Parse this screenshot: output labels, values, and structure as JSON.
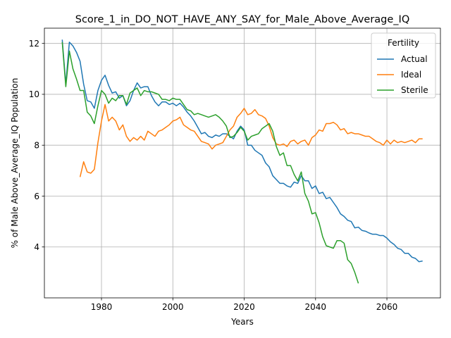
{
  "chart_data": {
    "type": "line",
    "title": "Score_1_in_DO_NOT_HAVE_ANY_SAY_for_Male_Above_Average_IQ",
    "xlabel": "Years",
    "ylabel": "% of Male Above_Average_IQ Population",
    "xlim": [
      1964,
      2075
    ],
    "ylim": [
      2.0,
      12.6
    ],
    "xticks": [
      1980,
      2000,
      2020,
      2040,
      2060
    ],
    "yticks": [
      4,
      6,
      8,
      10,
      12
    ],
    "grid": true,
    "legend": {
      "title": "Fertility",
      "placement": "top-right"
    },
    "series": [
      {
        "name": "Actual",
        "color": "#1f77b4",
        "points": [
          [
            1969,
            12.15
          ],
          [
            1970,
            10.4
          ],
          [
            1971,
            12.05
          ],
          [
            1972,
            11.9
          ],
          [
            1973,
            11.65
          ],
          [
            1974,
            11.3
          ],
          [
            1975,
            10.4
          ],
          [
            1976,
            9.75
          ],
          [
            1977,
            9.7
          ],
          [
            1978,
            9.45
          ],
          [
            1979,
            10.15
          ],
          [
            1980,
            10.55
          ],
          [
            1981,
            10.75
          ],
          [
            1982,
            10.35
          ],
          [
            1983,
            10.05
          ],
          [
            1984,
            10.1
          ],
          [
            1985,
            9.85
          ],
          [
            1986,
            9.95
          ],
          [
            1987,
            9.55
          ],
          [
            1988,
            9.75
          ],
          [
            1989,
            10.15
          ],
          [
            1990,
            10.45
          ],
          [
            1991,
            10.25
          ],
          [
            1992,
            10.3
          ],
          [
            1993,
            10.3
          ],
          [
            1994,
            9.95
          ],
          [
            1995,
            9.7
          ],
          [
            1996,
            9.55
          ],
          [
            1997,
            9.7
          ],
          [
            1998,
            9.7
          ],
          [
            1999,
            9.6
          ],
          [
            2000,
            9.65
          ],
          [
            2001,
            9.55
          ],
          [
            2002,
            9.65
          ],
          [
            2003,
            9.5
          ],
          [
            2004,
            9.3
          ],
          [
            2005,
            9.15
          ],
          [
            2006,
            8.95
          ],
          [
            2007,
            8.7
          ],
          [
            2008,
            8.45
          ],
          [
            2009,
            8.5
          ],
          [
            2010,
            8.35
          ],
          [
            2011,
            8.3
          ],
          [
            2012,
            8.4
          ],
          [
            2013,
            8.35
          ],
          [
            2014,
            8.45
          ],
          [
            2015,
            8.45
          ],
          [
            2016,
            8.35
          ],
          [
            2017,
            8.25
          ],
          [
            2018,
            8.55
          ],
          [
            2019,
            8.75
          ],
          [
            2020,
            8.6
          ],
          [
            2021,
            8.0
          ],
          [
            2022,
            8.0
          ],
          [
            2023,
            7.8
          ],
          [
            2024,
            7.7
          ],
          [
            2025,
            7.6
          ],
          [
            2026,
            7.3
          ],
          [
            2027,
            7.15
          ],
          [
            2028,
            6.8
          ],
          [
            2029,
            6.65
          ],
          [
            2030,
            6.5
          ],
          [
            2031,
            6.5
          ],
          [
            2032,
            6.4
          ],
          [
            2033,
            6.35
          ],
          [
            2034,
            6.55
          ],
          [
            2035,
            6.5
          ],
          [
            2036,
            6.8
          ],
          [
            2037,
            6.6
          ],
          [
            2038,
            6.6
          ],
          [
            2039,
            6.3
          ],
          [
            2040,
            6.4
          ],
          [
            2041,
            6.1
          ],
          [
            2042,
            6.15
          ],
          [
            2043,
            5.9
          ],
          [
            2044,
            5.95
          ],
          [
            2045,
            5.75
          ],
          [
            2046,
            5.55
          ],
          [
            2047,
            5.3
          ],
          [
            2048,
            5.2
          ],
          [
            2049,
            5.05
          ],
          [
            2050,
            5.0
          ],
          [
            2051,
            4.75
          ],
          [
            2052,
            4.78
          ],
          [
            2053,
            4.65
          ],
          [
            2054,
            4.62
          ],
          [
            2055,
            4.55
          ],
          [
            2056,
            4.5
          ],
          [
            2057,
            4.5
          ],
          [
            2058,
            4.45
          ],
          [
            2059,
            4.45
          ],
          [
            2060,
            4.35
          ],
          [
            2061,
            4.2
          ],
          [
            2062,
            4.1
          ],
          [
            2063,
            3.95
          ],
          [
            2064,
            3.9
          ],
          [
            2065,
            3.75
          ],
          [
            2066,
            3.75
          ],
          [
            2067,
            3.6
          ],
          [
            2068,
            3.55
          ],
          [
            2069,
            3.42
          ],
          [
            2070,
            3.45
          ]
        ]
      },
      {
        "name": "Ideal",
        "color": "#ff7f0e",
        "points": [
          [
            1974,
            6.75
          ],
          [
            1975,
            7.35
          ],
          [
            1976,
            6.95
          ],
          [
            1977,
            6.9
          ],
          [
            1978,
            7.05
          ],
          [
            1979,
            8.1
          ],
          [
            1980,
            8.95
          ],
          [
            1981,
            9.6
          ],
          [
            1982,
            8.95
          ],
          [
            1983,
            9.1
          ],
          [
            1984,
            8.95
          ],
          [
            1985,
            8.6
          ],
          [
            1986,
            8.8
          ],
          [
            1987,
            8.35
          ],
          [
            1988,
            8.15
          ],
          [
            1989,
            8.3
          ],
          [
            1990,
            8.2
          ],
          [
            1991,
            8.35
          ],
          [
            1992,
            8.2
          ],
          [
            1993,
            8.55
          ],
          [
            1994,
            8.45
          ],
          [
            1995,
            8.35
          ],
          [
            1996,
            8.55
          ],
          [
            1997,
            8.6
          ],
          [
            1998,
            8.7
          ],
          [
            1999,
            8.8
          ],
          [
            2000,
            8.95
          ],
          [
            2001,
            9.0
          ],
          [
            2002,
            9.1
          ],
          [
            2003,
            8.8
          ],
          [
            2004,
            8.7
          ],
          [
            2005,
            8.6
          ],
          [
            2006,
            8.55
          ],
          [
            2007,
            8.35
          ],
          [
            2008,
            8.15
          ],
          [
            2009,
            8.1
          ],
          [
            2010,
            8.05
          ],
          [
            2011,
            7.85
          ],
          [
            2012,
            8.0
          ],
          [
            2013,
            8.05
          ],
          [
            2014,
            8.1
          ],
          [
            2015,
            8.35
          ],
          [
            2016,
            8.6
          ],
          [
            2017,
            8.75
          ],
          [
            2018,
            9.1
          ],
          [
            2019,
            9.25
          ],
          [
            2020,
            9.45
          ],
          [
            2021,
            9.2
          ],
          [
            2022,
            9.25
          ],
          [
            2023,
            9.4
          ],
          [
            2024,
            9.2
          ],
          [
            2025,
            9.15
          ],
          [
            2026,
            9.05
          ],
          [
            2027,
            8.75
          ],
          [
            2028,
            8.3
          ],
          [
            2029,
            8.05
          ],
          [
            2030,
            8.0
          ],
          [
            2031,
            8.05
          ],
          [
            2032,
            7.95
          ],
          [
            2033,
            8.15
          ],
          [
            2034,
            8.2
          ],
          [
            2035,
            8.05
          ],
          [
            2036,
            8.15
          ],
          [
            2037,
            8.2
          ],
          [
            2038,
            8.0
          ],
          [
            2039,
            8.3
          ],
          [
            2040,
            8.4
          ],
          [
            2041,
            8.6
          ],
          [
            2042,
            8.55
          ],
          [
            2043,
            8.85
          ],
          [
            2044,
            8.85
          ],
          [
            2045,
            8.9
          ],
          [
            2046,
            8.8
          ],
          [
            2047,
            8.6
          ],
          [
            2048,
            8.65
          ],
          [
            2049,
            8.45
          ],
          [
            2050,
            8.5
          ],
          [
            2051,
            8.45
          ],
          [
            2052,
            8.45
          ],
          [
            2053,
            8.4
          ],
          [
            2054,
            8.35
          ],
          [
            2055,
            8.35
          ],
          [
            2056,
            8.25
          ],
          [
            2057,
            8.15
          ],
          [
            2058,
            8.1
          ],
          [
            2059,
            8.0
          ],
          [
            2060,
            8.2
          ],
          [
            2061,
            8.05
          ],
          [
            2062,
            8.2
          ],
          [
            2063,
            8.1
          ],
          [
            2064,
            8.15
          ],
          [
            2065,
            8.1
          ],
          [
            2066,
            8.15
          ],
          [
            2067,
            8.2
          ],
          [
            2068,
            8.1
          ],
          [
            2069,
            8.25
          ],
          [
            2070,
            8.25
          ]
        ]
      },
      {
        "name": "Sterile",
        "color": "#2ca02c",
        "points": [
          [
            1969,
            12.05
          ],
          [
            1970,
            10.3
          ],
          [
            1971,
            11.7
          ],
          [
            1972,
            11.0
          ],
          [
            1973,
            10.6
          ],
          [
            1974,
            10.15
          ],
          [
            1975,
            10.15
          ],
          [
            1976,
            9.3
          ],
          [
            1977,
            9.15
          ],
          [
            1978,
            8.85
          ],
          [
            1979,
            9.55
          ],
          [
            1980,
            10.15
          ],
          [
            1981,
            10.0
          ],
          [
            1982,
            9.65
          ],
          [
            1983,
            9.85
          ],
          [
            1984,
            9.75
          ],
          [
            1985,
            9.95
          ],
          [
            1986,
            9.95
          ],
          [
            1987,
            9.6
          ],
          [
            1988,
            10.05
          ],
          [
            1989,
            10.15
          ],
          [
            1990,
            10.25
          ],
          [
            1991,
            9.95
          ],
          [
            1992,
            10.15
          ],
          [
            1993,
            10.1
          ],
          [
            1994,
            10.1
          ],
          [
            1995,
            10.05
          ],
          [
            1996,
            10.0
          ],
          [
            1997,
            9.8
          ],
          [
            1998,
            9.8
          ],
          [
            1999,
            9.75
          ],
          [
            2000,
            9.85
          ],
          [
            2001,
            9.8
          ],
          [
            2002,
            9.8
          ],
          [
            2003,
            9.6
          ],
          [
            2004,
            9.4
          ],
          [
            2005,
            9.35
          ],
          [
            2006,
            9.2
          ],
          [
            2007,
            9.25
          ],
          [
            2008,
            9.2
          ],
          [
            2009,
            9.15
          ],
          [
            2010,
            9.1
          ],
          [
            2011,
            9.15
          ],
          [
            2012,
            9.2
          ],
          [
            2013,
            9.1
          ],
          [
            2014,
            8.95
          ],
          [
            2015,
            8.75
          ],
          [
            2016,
            8.3
          ],
          [
            2017,
            8.35
          ],
          [
            2018,
            8.5
          ],
          [
            2019,
            8.7
          ],
          [
            2020,
            8.55
          ],
          [
            2021,
            8.2
          ],
          [
            2022,
            8.35
          ],
          [
            2023,
            8.4
          ],
          [
            2024,
            8.45
          ],
          [
            2025,
            8.65
          ],
          [
            2026,
            8.75
          ],
          [
            2027,
            8.85
          ],
          [
            2028,
            8.55
          ],
          [
            2029,
            7.95
          ],
          [
            2030,
            7.6
          ],
          [
            2031,
            7.7
          ],
          [
            2032,
            7.2
          ],
          [
            2033,
            7.2
          ],
          [
            2034,
            6.85
          ],
          [
            2035,
            6.6
          ],
          [
            2036,
            6.95
          ],
          [
            2037,
            6.1
          ],
          [
            2038,
            5.8
          ],
          [
            2039,
            5.3
          ],
          [
            2040,
            5.35
          ],
          [
            2041,
            4.95
          ],
          [
            2042,
            4.4
          ],
          [
            2043,
            4.05
          ],
          [
            2044,
            4.0
          ],
          [
            2045,
            3.95
          ],
          [
            2046,
            4.25
          ],
          [
            2047,
            4.25
          ],
          [
            2048,
            4.15
          ],
          [
            2049,
            3.5
          ],
          [
            2050,
            3.35
          ],
          [
            2051,
            3.0
          ],
          [
            2052,
            2.57
          ]
        ]
      }
    ]
  }
}
